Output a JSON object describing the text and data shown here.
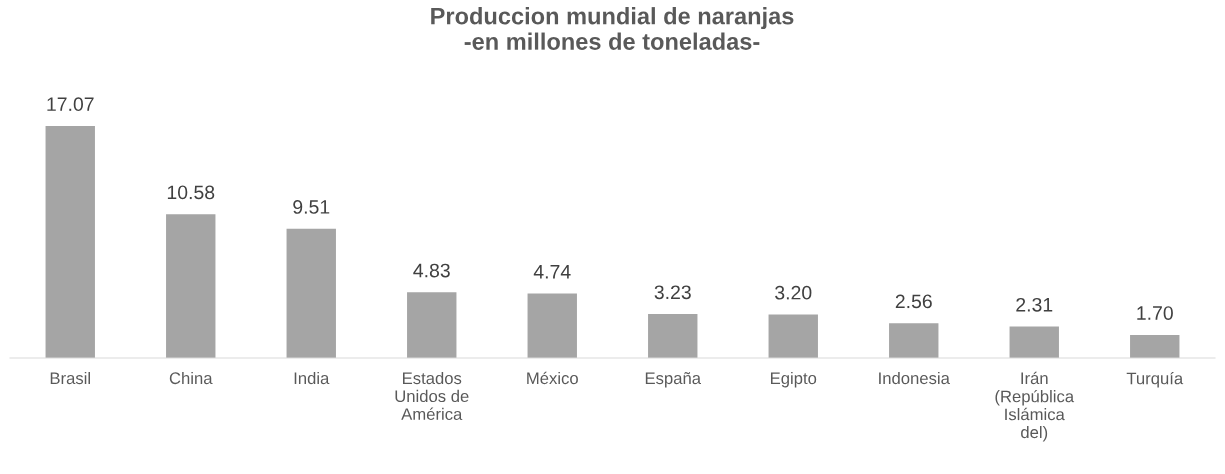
{
  "chart_data": {
    "type": "bar",
    "title": "Produccion mundial de naranjas\n-en millones de toneladas-",
    "categories": [
      "Brasil",
      "China",
      "India",
      "Estados\nUnidos de\nAmérica",
      "México",
      "España",
      "Egipto",
      "Indonesia",
      "Irán\n(República\nIslámica\ndel)",
      "Turquía"
    ],
    "values": [
      17.07,
      10.58,
      9.51,
      4.83,
      4.74,
      3.23,
      3.2,
      2.56,
      2.31,
      1.7
    ],
    "value_labels": [
      "17.07",
      "10.58",
      "9.51",
      "4.83",
      "4.74",
      "3.23",
      "3.20",
      "2.56",
      "2.31",
      "1.70"
    ],
    "color": "#a5a5a5",
    "grid": false,
    "legend": false,
    "tick_labels": "x"
  }
}
